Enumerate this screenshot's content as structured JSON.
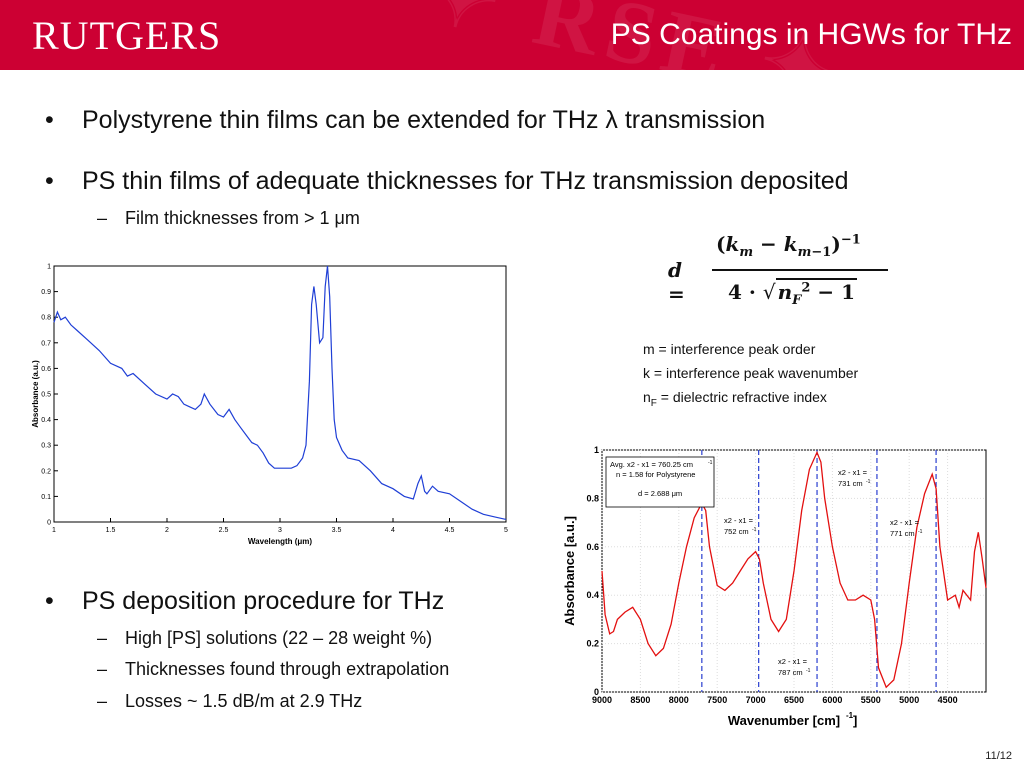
{
  "header": {
    "logo": "RUTGERS",
    "title": "PS Coatings in HGWs for THz",
    "bg_color": "#cc0033"
  },
  "bullets": {
    "b1": "Polystyrene thin films can be extended for THz λ transmission",
    "b2": "PS thin films of adequate thicknesses for THz transmission deposited",
    "b2_sub1": "Film thicknesses from > 1 μm",
    "b3": "PS deposition procedure for THz",
    "b3_sub1": "High [PS] solutions (22 – 28 weight %)",
    "b3_sub2": "Thicknesses found through extrapolation",
    "b3_sub3": " Losses ~ 1.5 dB/m at 2.9 THz",
    "bullet_glyph": "•",
    "dash_glyph": "–"
  },
  "formula": {
    "lhs": "d =",
    "numerator": "(km − km−1)−1",
    "denominator": "4 · √(nF² − 1)"
  },
  "definitions": {
    "m": "m = interference peak order",
    "k": "k = interference peak wavenumber",
    "n_prefix": "n",
    "n_sub": "F",
    "n_rest": " = dielectric refractive index"
  },
  "chart_data": [
    {
      "type": "line",
      "xlabel": "Wavelength (μm)",
      "ylabel": "Absorbance (a.u.)",
      "xlim": [
        1,
        5
      ],
      "ylim": [
        0,
        1
      ],
      "xticks": [
        "1",
        "1.5",
        "2",
        "2.5",
        "3",
        "3.5",
        "4",
        "4.5",
        "5"
      ],
      "yticks": [
        "0",
        "0.1",
        "0.2",
        "0.3",
        "0.4",
        "0.5",
        "0.6",
        "0.7",
        "0.8",
        "0.9",
        "1"
      ],
      "grid": false,
      "series": [
        {
          "color": "#1f3fd6",
          "points": [
            [
              1.0,
              0.78
            ],
            [
              1.03,
              0.82
            ],
            [
              1.06,
              0.79
            ],
            [
              1.1,
              0.8
            ],
            [
              1.15,
              0.77
            ],
            [
              1.2,
              0.75
            ],
            [
              1.3,
              0.71
            ],
            [
              1.4,
              0.67
            ],
            [
              1.5,
              0.62
            ],
            [
              1.6,
              0.6
            ],
            [
              1.65,
              0.57
            ],
            [
              1.7,
              0.58
            ],
            [
              1.8,
              0.54
            ],
            [
              1.9,
              0.5
            ],
            [
              2.0,
              0.48
            ],
            [
              2.05,
              0.5
            ],
            [
              2.1,
              0.49
            ],
            [
              2.15,
              0.46
            ],
            [
              2.2,
              0.45
            ],
            [
              2.25,
              0.44
            ],
            [
              2.3,
              0.46
            ],
            [
              2.33,
              0.5
            ],
            [
              2.38,
              0.46
            ],
            [
              2.45,
              0.42
            ],
            [
              2.5,
              0.41
            ],
            [
              2.55,
              0.44
            ],
            [
              2.6,
              0.4
            ],
            [
              2.65,
              0.37
            ],
            [
              2.7,
              0.34
            ],
            [
              2.75,
              0.31
            ],
            [
              2.8,
              0.3
            ],
            [
              2.85,
              0.27
            ],
            [
              2.9,
              0.23
            ],
            [
              2.95,
              0.21
            ],
            [
              3.0,
              0.21
            ],
            [
              3.1,
              0.21
            ],
            [
              3.15,
              0.22
            ],
            [
              3.2,
              0.25
            ],
            [
              3.23,
              0.3
            ],
            [
              3.26,
              0.55
            ],
            [
              3.28,
              0.85
            ],
            [
              3.3,
              0.92
            ],
            [
              3.32,
              0.85
            ],
            [
              3.35,
              0.7
            ],
            [
              3.38,
              0.72
            ],
            [
              3.4,
              0.92
            ],
            [
              3.42,
              1.0
            ],
            [
              3.44,
              0.88
            ],
            [
              3.46,
              0.6
            ],
            [
              3.48,
              0.4
            ],
            [
              3.5,
              0.33
            ],
            [
              3.55,
              0.28
            ],
            [
              3.6,
              0.25
            ],
            [
              3.7,
              0.24
            ],
            [
              3.8,
              0.2
            ],
            [
              3.9,
              0.15
            ],
            [
              4.0,
              0.13
            ],
            [
              4.1,
              0.1
            ],
            [
              4.18,
              0.09
            ],
            [
              4.22,
              0.15
            ],
            [
              4.25,
              0.18
            ],
            [
              4.28,
              0.12
            ],
            [
              4.3,
              0.11
            ],
            [
              4.35,
              0.14
            ],
            [
              4.4,
              0.12
            ],
            [
              4.5,
              0.11
            ],
            [
              4.6,
              0.08
            ],
            [
              4.7,
              0.05
            ],
            [
              4.8,
              0.03
            ],
            [
              4.9,
              0.02
            ],
            [
              5.0,
              0.01
            ]
          ]
        }
      ]
    },
    {
      "type": "line",
      "xlabel": "Wavenumber [cm⁻¹]",
      "ylabel": "Absorbance [a.u.]",
      "xlim": [
        9000,
        4000
      ],
      "ylim": [
        0,
        1
      ],
      "xticks": [
        "9000",
        "8500",
        "8000",
        "7500",
        "7000",
        "6500",
        "6000",
        "5500",
        "5000",
        "4500"
      ],
      "yticks": [
        "0",
        "0.2",
        "0.4",
        "0.6",
        "0.8",
        "1"
      ],
      "grid": true,
      "series": [
        {
          "color": "#e31010",
          "points": [
            [
              9000,
              0.5
            ],
            [
              8960,
              0.32
            ],
            [
              8900,
              0.24
            ],
            [
              8850,
              0.25
            ],
            [
              8800,
              0.3
            ],
            [
              8700,
              0.33
            ],
            [
              8600,
              0.35
            ],
            [
              8500,
              0.3
            ],
            [
              8400,
              0.2
            ],
            [
              8300,
              0.15
            ],
            [
              8200,
              0.18
            ],
            [
              8100,
              0.28
            ],
            [
              8000,
              0.45
            ],
            [
              7900,
              0.6
            ],
            [
              7800,
              0.72
            ],
            [
              7700,
              0.78
            ],
            [
              7650,
              0.75
            ],
            [
              7600,
              0.6
            ],
            [
              7500,
              0.44
            ],
            [
              7400,
              0.42
            ],
            [
              7300,
              0.45
            ],
            [
              7200,
              0.5
            ],
            [
              7100,
              0.55
            ],
            [
              7000,
              0.58
            ],
            [
              6950,
              0.55
            ],
            [
              6900,
              0.45
            ],
            [
              6800,
              0.3
            ],
            [
              6700,
              0.25
            ],
            [
              6600,
              0.3
            ],
            [
              6500,
              0.5
            ],
            [
              6400,
              0.75
            ],
            [
              6300,
              0.92
            ],
            [
              6200,
              0.99
            ],
            [
              6150,
              0.95
            ],
            [
              6100,
              0.8
            ],
            [
              6000,
              0.6
            ],
            [
              5900,
              0.45
            ],
            [
              5800,
              0.38
            ],
            [
              5700,
              0.38
            ],
            [
              5600,
              0.4
            ],
            [
              5500,
              0.38
            ],
            [
              5450,
              0.3
            ],
            [
              5400,
              0.1
            ],
            [
              5300,
              0.02
            ],
            [
              5200,
              0.05
            ],
            [
              5100,
              0.2
            ],
            [
              5000,
              0.45
            ],
            [
              4900,
              0.68
            ],
            [
              4800,
              0.82
            ],
            [
              4750,
              0.86
            ],
            [
              4700,
              0.9
            ],
            [
              4650,
              0.84
            ],
            [
              4600,
              0.6
            ],
            [
              4500,
              0.38
            ],
            [
              4400,
              0.4
            ],
            [
              4350,
              0.35
            ],
            [
              4300,
              0.42
            ],
            [
              4200,
              0.38
            ],
            [
              4150,
              0.58
            ],
            [
              4100,
              0.66
            ],
            [
              4050,
              0.55
            ],
            [
              4000,
              0.43
            ]
          ]
        }
      ],
      "dashed_lines": [
        7700,
        6960,
        6200,
        5420,
        4650
      ],
      "annotations": [
        {
          "key": "box1",
          "text": "Avg. x2 - x1 = 760.25 cm"
        },
        {
          "key": "box2",
          "text": "n = 1.58 for Polystyrene"
        },
        {
          "key": "box3",
          "text": "d = 2.688 μm"
        },
        {
          "key": "a1",
          "text": "x2 - x1 ="
        },
        {
          "key": "a1b",
          "text": "752 cm"
        },
        {
          "key": "a2",
          "text": "x2 - x1 ="
        },
        {
          "key": "a2b",
          "text": "731 cm"
        },
        {
          "key": "a3",
          "text": "x2 - x1 ="
        },
        {
          "key": "a3b",
          "text": "771 cm"
        },
        {
          "key": "a4",
          "text": "x2 - x1 ="
        },
        {
          "key": "a4b",
          "text": "787 cm"
        }
      ]
    }
  ],
  "footer": {
    "page": "11/12"
  }
}
